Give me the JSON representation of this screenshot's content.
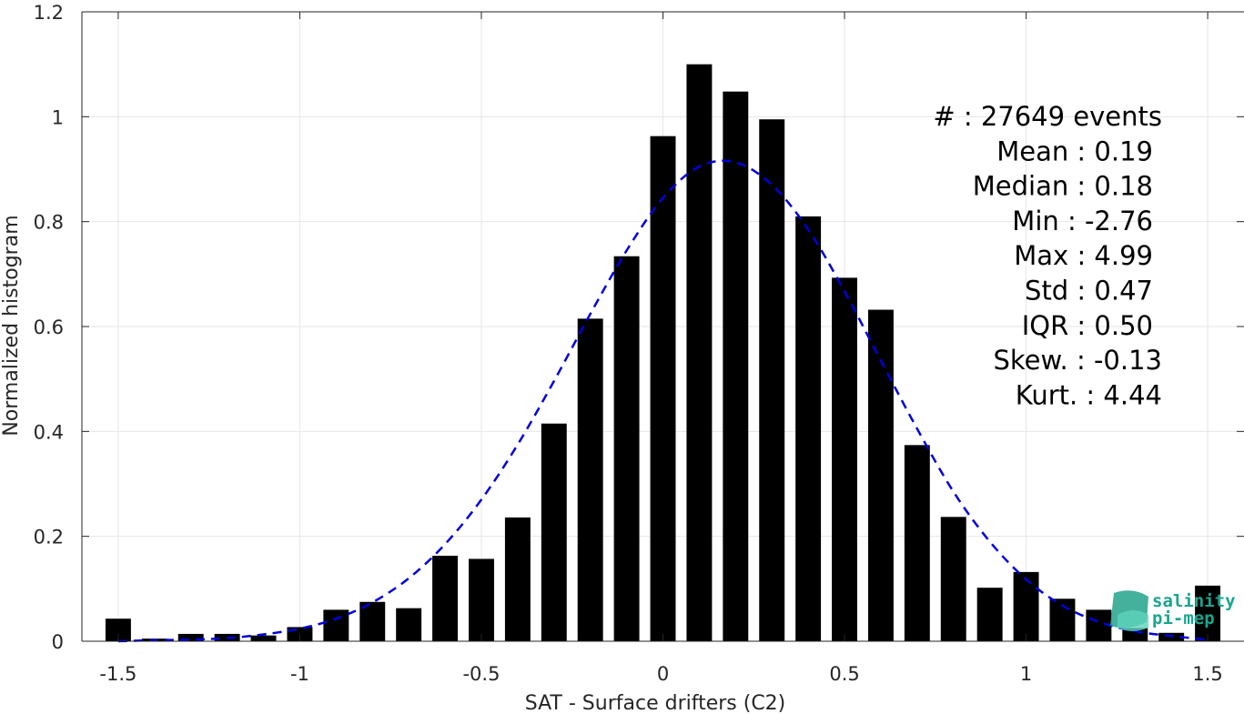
{
  "chart_data": {
    "type": "bar",
    "xlabel": "SAT - Surface drifters (C2)",
    "ylabel": "Normalized histogram",
    "xlim": [
      -1.6,
      1.6
    ],
    "ylim": [
      0,
      1.2
    ],
    "xticks": [
      -1.5,
      -1,
      -0.5,
      0,
      0.5,
      1,
      1.5
    ],
    "xtick_labels": [
      "-1.5",
      "-1",
      "-0.5",
      "0",
      "0.5",
      "1",
      "1.5"
    ],
    "yticks": [
      0,
      0.2,
      0.4,
      0.6,
      0.8,
      1,
      1.2
    ],
    "ytick_labels": [
      "0",
      "0.2",
      "0.4",
      "0.6",
      "0.8",
      "1",
      "1.2"
    ],
    "grid": true,
    "bar_color": "#000000",
    "bar_width": 0.07,
    "bars": {
      "x": [
        -1.5,
        -1.4,
        -1.3,
        -1.2,
        -1.1,
        -1.0,
        -0.9,
        -0.8,
        -0.7,
        -0.6,
        -0.5,
        -0.4,
        -0.3,
        -0.2,
        -0.1,
        0.0,
        0.1,
        0.2,
        0.3,
        0.4,
        0.5,
        0.6,
        0.7,
        0.8,
        0.9,
        1.0,
        1.1,
        1.2,
        1.3,
        1.4,
        1.5
      ],
      "values": [
        0.043,
        0.005,
        0.014,
        0.014,
        0.011,
        0.027,
        0.06,
        0.075,
        0.063,
        0.163,
        0.157,
        0.236,
        0.415,
        0.615,
        0.734,
        0.963,
        1.1,
        1.048,
        0.995,
        0.81,
        0.693,
        0.632,
        0.374,
        0.237,
        0.102,
        0.132,
        0.081,
        0.06,
        0.025,
        0.016,
        0.106
      ]
    },
    "fit_curve": {
      "type": "gaussian",
      "style": "dashed",
      "color": "#0000dd",
      "x": [
        -1.5,
        -1.4,
        -1.3,
        -1.2,
        -1.1,
        -1.0,
        -0.9,
        -0.8,
        -0.7,
        -0.6,
        -0.5,
        -0.4,
        -0.3,
        -0.2,
        -0.1,
        0.0,
        0.1,
        0.2,
        0.3,
        0.4,
        0.5,
        0.6,
        0.7,
        0.8,
        0.9,
        1.0,
        1.1,
        1.2,
        1.3,
        1.4,
        1.5
      ],
      "y": [
        0.0,
        0.002,
        0.003,
        0.006,
        0.013,
        0.024,
        0.043,
        0.074,
        0.12,
        0.185,
        0.27,
        0.375,
        0.496,
        0.624,
        0.745,
        0.845,
        0.905,
        0.913,
        0.87,
        0.785,
        0.667,
        0.535,
        0.405,
        0.285,
        0.19,
        0.118,
        0.068,
        0.037,
        0.019,
        0.01,
        0.003
      ]
    },
    "annotations": [
      "#  : 27649 events",
      "Mean : 0.19",
      "Median : 0.18",
      "Min : -2.76",
      "Max : 4.99",
      "Std : 0.47",
      "IQR : 0.50",
      "Skew. : -0.13",
      "Kurt. : 4.44"
    ]
  },
  "logo": {
    "line1": "salinity",
    "line2": "pi-mep"
  }
}
